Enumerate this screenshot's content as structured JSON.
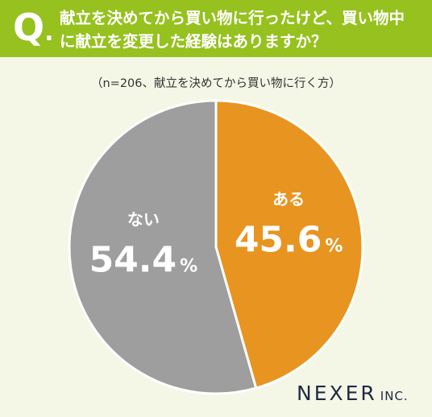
{
  "header": {
    "q_letter": "Q",
    "question_line1": "献立を決めてから買い物に行ったけど、買い物中",
    "question_line2": "に献立を変更した経験はありますか？"
  },
  "subtitle": "（n=206、献立を決めてから買い物に行く方）",
  "chart_data": {
    "type": "pie",
    "slices": [
      {
        "label": "ある",
        "value": 45.6,
        "display": "45.6",
        "color": "#e89420"
      },
      {
        "label": "ない",
        "value": 54.4,
        "display": "54.4",
        "color": "#9e9e9e"
      }
    ],
    "unit": "%",
    "start": "12 o'clock",
    "direction": "clockwise"
  },
  "logo": {
    "main": "NEXER",
    "suffix": "INC."
  }
}
